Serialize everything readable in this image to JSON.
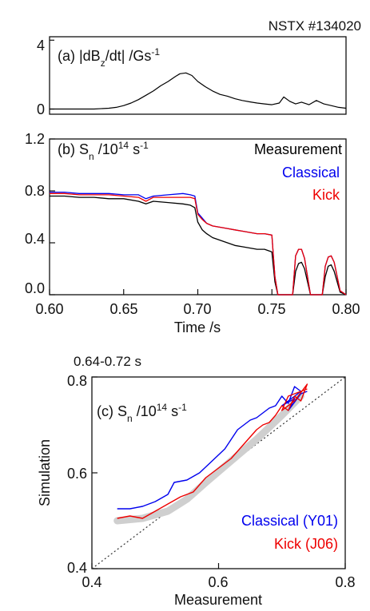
{
  "figure": {
    "shot_label": "NSTX #134020",
    "window_label": "0.64-0.72 s"
  },
  "chart_data": [
    {
      "id": "a",
      "type": "line",
      "panel_label": "(a) |dB",
      "panel_label_sub": "z",
      "panel_label_rest": "/dt| /Gs",
      "panel_label_sup": "-1",
      "xlim": [
        0.6,
        0.8
      ],
      "ylim": [
        -0.3,
        4.2
      ],
      "yticks": [
        "0",
        "4"
      ],
      "ytick_values": [
        0,
        4
      ],
      "series": [
        {
          "color": "#000000",
          "x": [
            0.6,
            0.61,
            0.62,
            0.63,
            0.64,
            0.645,
            0.65,
            0.655,
            0.66,
            0.665,
            0.67,
            0.675,
            0.68,
            0.685,
            0.688,
            0.692,
            0.696,
            0.7,
            0.705,
            0.71,
            0.715,
            0.72,
            0.725,
            0.73,
            0.735,
            0.74,
            0.745,
            0.75,
            0.755,
            0.758,
            0.762,
            0.766,
            0.77,
            0.775,
            0.78,
            0.785,
            0.79,
            0.795,
            0.8
          ],
          "y": [
            0.0,
            0.0,
            0.0,
            0.0,
            0.05,
            0.1,
            0.2,
            0.35,
            0.55,
            0.8,
            1.05,
            1.35,
            1.6,
            1.9,
            2.05,
            2.1,
            1.95,
            1.6,
            1.3,
            1.05,
            0.85,
            0.75,
            0.6,
            0.5,
            0.42,
            0.35,
            0.3,
            0.25,
            0.35,
            0.7,
            0.45,
            0.3,
            0.4,
            0.25,
            0.5,
            0.3,
            0.2,
            0.1,
            0.05
          ]
        }
      ]
    },
    {
      "id": "b",
      "type": "line",
      "panel_label": "(b) S",
      "panel_label_sub": "n",
      "panel_label_rest": " /10",
      "panel_label_sup": "14",
      "panel_label_unit": " s",
      "panel_label_sup2": "-1",
      "xlim": [
        0.6,
        0.8
      ],
      "ylim": [
        0.0,
        1.2
      ],
      "xlabel": "Time /s",
      "xticks": [
        "0.60",
        "0.65",
        "0.70",
        "0.75",
        "0.80"
      ],
      "xtick_values": [
        0.6,
        0.65,
        0.7,
        0.75,
        0.8
      ],
      "yticks": [
        "0.0",
        "0.4",
        "0.8",
        "1.2"
      ],
      "ytick_values": [
        0.0,
        0.4,
        0.8,
        1.2
      ],
      "series": [
        {
          "name": "Measurement",
          "color": "#000000",
          "x": [
            0.6,
            0.61,
            0.62,
            0.63,
            0.64,
            0.65,
            0.66,
            0.665,
            0.67,
            0.68,
            0.69,
            0.695,
            0.698,
            0.7,
            0.703,
            0.706,
            0.71,
            0.715,
            0.72,
            0.725,
            0.73,
            0.735,
            0.74,
            0.745,
            0.75,
            0.752,
            0.754,
            0.756,
            0.76,
            0.764,
            0.766,
            0.768,
            0.77,
            0.772,
            0.776,
            0.78,
            0.784,
            0.786,
            0.788,
            0.79,
            0.792,
            0.796,
            0.8
          ],
          "y": [
            0.76,
            0.76,
            0.75,
            0.75,
            0.74,
            0.74,
            0.72,
            0.7,
            0.72,
            0.71,
            0.7,
            0.69,
            0.67,
            0.56,
            0.5,
            0.47,
            0.44,
            0.42,
            0.4,
            0.38,
            0.37,
            0.36,
            0.35,
            0.35,
            0.33,
            0.1,
            0.0,
            0.0,
            0.0,
            0.0,
            0.18,
            0.24,
            0.25,
            0.2,
            0.0,
            0.0,
            0.0,
            0.14,
            0.22,
            0.23,
            0.18,
            0.02,
            0.0
          ]
        },
        {
          "name": "Classical",
          "color": "#0000ee",
          "x": [
            0.6,
            0.61,
            0.62,
            0.63,
            0.64,
            0.65,
            0.66,
            0.665,
            0.67,
            0.68,
            0.69,
            0.695,
            0.698,
            0.7,
            0.703,
            0.706,
            0.71,
            0.715,
            0.72,
            0.725,
            0.73,
            0.735,
            0.74,
            0.745,
            0.75,
            0.752,
            0.754,
            0.756,
            0.76,
            0.764,
            0.766,
            0.768,
            0.77,
            0.772,
            0.776,
            0.78,
            0.784,
            0.786,
            0.788,
            0.79,
            0.792,
            0.796,
            0.8
          ],
          "y": [
            0.79,
            0.79,
            0.78,
            0.78,
            0.78,
            0.77,
            0.77,
            0.74,
            0.76,
            0.77,
            0.78,
            0.77,
            0.76,
            0.63,
            0.59,
            0.55,
            0.53,
            0.52,
            0.51,
            0.5,
            0.49,
            0.48,
            0.47,
            0.47,
            0.46,
            0.14,
            0.0,
            0.0,
            0.0,
            0.0,
            0.3,
            0.35,
            0.35,
            0.28,
            0.0,
            0.0,
            0.0,
            0.22,
            0.29,
            0.3,
            0.25,
            0.03,
            0.0
          ]
        },
        {
          "name": "Kick",
          "color": "#ee0000",
          "x": [
            0.6,
            0.61,
            0.62,
            0.63,
            0.64,
            0.65,
            0.66,
            0.665,
            0.67,
            0.68,
            0.69,
            0.695,
            0.698,
            0.7,
            0.703,
            0.706,
            0.71,
            0.715,
            0.72,
            0.725,
            0.73,
            0.735,
            0.74,
            0.745,
            0.75,
            0.752,
            0.754,
            0.756,
            0.76,
            0.764,
            0.766,
            0.768,
            0.77,
            0.772,
            0.776,
            0.78,
            0.784,
            0.786,
            0.788,
            0.79,
            0.792,
            0.796,
            0.8
          ],
          "y": [
            0.78,
            0.78,
            0.77,
            0.77,
            0.77,
            0.76,
            0.75,
            0.72,
            0.75,
            0.75,
            0.75,
            0.75,
            0.74,
            0.62,
            0.58,
            0.55,
            0.53,
            0.52,
            0.51,
            0.5,
            0.49,
            0.48,
            0.47,
            0.47,
            0.46,
            0.14,
            0.0,
            0.0,
            0.0,
            0.0,
            0.3,
            0.35,
            0.35,
            0.28,
            0.0,
            0.0,
            0.0,
            0.22,
            0.29,
            0.3,
            0.25,
            0.03,
            0.0
          ]
        }
      ]
    },
    {
      "id": "c",
      "type": "line",
      "panel_label": "(c) S",
      "panel_label_sub": "n",
      "panel_label_rest": " /10",
      "panel_label_sup": "14",
      "panel_label_unit": " s",
      "panel_label_sup2": "-1",
      "xlim": [
        0.4,
        0.8
      ],
      "ylim": [
        0.4,
        0.8
      ],
      "xlabel": "Measurement",
      "ylabel": "Simulation",
      "xticks": [
        "0.4",
        "0.6",
        "0.8"
      ],
      "xtick_values": [
        0.4,
        0.6,
        0.8
      ],
      "yticks": [
        "0.4",
        "0.6",
        "0.8"
      ],
      "ytick_values": [
        0.4,
        0.6,
        0.8
      ],
      "diagonal": true,
      "series": [
        {
          "name": "Classical (Y01)",
          "color": "#0000ee",
          "x": [
            0.44,
            0.46,
            0.48,
            0.5,
            0.52,
            0.53,
            0.55,
            0.57,
            0.59,
            0.61,
            0.63,
            0.65,
            0.66,
            0.67,
            0.68,
            0.69,
            0.7,
            0.71,
            0.72,
            0.73,
            0.72,
            0.7,
            0.72,
            0.71,
            0.73,
            0.74
          ],
          "y": [
            0.525,
            0.525,
            0.53,
            0.54,
            0.555,
            0.58,
            0.585,
            0.6,
            0.625,
            0.65,
            0.69,
            0.71,
            0.715,
            0.725,
            0.735,
            0.74,
            0.76,
            0.745,
            0.78,
            0.77,
            0.76,
            0.74,
            0.755,
            0.73,
            0.765,
            0.77
          ]
        },
        {
          "name": "Kick (J06)",
          "color": "#ee0000",
          "x": [
            0.44,
            0.46,
            0.48,
            0.5,
            0.52,
            0.54,
            0.56,
            0.58,
            0.6,
            0.62,
            0.64,
            0.66,
            0.67,
            0.68,
            0.69,
            0.7,
            0.71,
            0.72,
            0.73,
            0.74,
            0.72,
            0.7,
            0.71,
            0.73,
            0.74
          ],
          "y": [
            0.505,
            0.51,
            0.505,
            0.52,
            0.535,
            0.55,
            0.56,
            0.59,
            0.61,
            0.63,
            0.66,
            0.69,
            0.7,
            0.705,
            0.72,
            0.74,
            0.73,
            0.76,
            0.75,
            0.785,
            0.75,
            0.73,
            0.76,
            0.77,
            0.775
          ]
        },
        {
          "color": "#cfcfcf",
          "x": [
            0.44,
            0.48,
            0.52,
            0.55,
            0.58,
            0.62,
            0.66,
            0.7,
            0.73
          ],
          "y": [
            0.5,
            0.505,
            0.52,
            0.545,
            0.58,
            0.625,
            0.67,
            0.72,
            0.76
          ]
        }
      ]
    }
  ]
}
